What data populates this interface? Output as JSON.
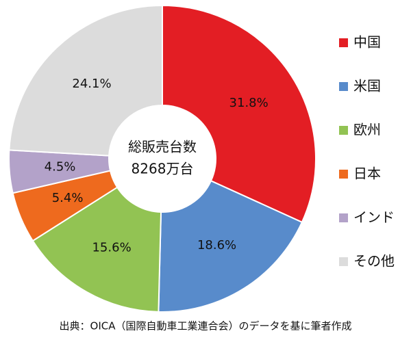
{
  "chart_data": {
    "type": "pie",
    "categories": [
      "中国",
      "米国",
      "欧州",
      "日本",
      "インド",
      "その他"
    ],
    "values": [
      31.8,
      18.6,
      15.6,
      5.4,
      4.5,
      24.1
    ],
    "value_labels": [
      "31.8%",
      "18.6%",
      "15.6%",
      "5.4%",
      "4.5%",
      "24.1%"
    ],
    "colors": [
      "#e31e24",
      "#588bcb",
      "#92c353",
      "#ee6a1e",
      "#b3a2c9",
      "#dcdcdc"
    ],
    "center_text": [
      "総販売台数",
      "8268万台"
    ],
    "source": "出典：OICA（国際自動車工業連合会）のデータを基に筆者作成",
    "legend": "right"
  }
}
